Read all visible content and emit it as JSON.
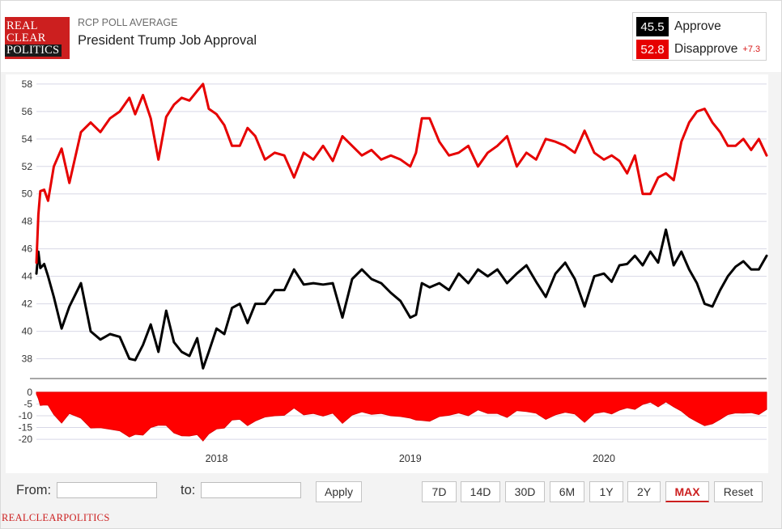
{
  "header": {
    "logo": {
      "line1": "REAL",
      "line2": "CLEAR",
      "line3": "POLITICS"
    },
    "kicker": "RCP POLL AVERAGE",
    "title": "President Trump Job Approval"
  },
  "legend": {
    "approve": {
      "value": "45.5",
      "label": "Approve",
      "color": "#000000"
    },
    "disapprove": {
      "value": "52.8",
      "label": "Disapprove",
      "spread": "+7.3",
      "color": "#e60000"
    }
  },
  "controls": {
    "from_label": "From:",
    "to_label": "to:",
    "from_value": "",
    "to_value": "",
    "apply_label": "Apply",
    "ranges": [
      "7D",
      "14D",
      "30D",
      "6M",
      "1Y",
      "2Y",
      "MAX"
    ],
    "active_range": "MAX",
    "reset_label": "Reset"
  },
  "footer": {
    "text": "REALCLEARPOLITICS"
  },
  "chart_data": {
    "type": "line",
    "x_unit": "year",
    "xlim": [
      2017.07,
      2020.84
    ],
    "x_ticks": [
      2018,
      2019,
      2020
    ],
    "x_tick_labels": [
      "2018",
      "2019",
      "2020"
    ],
    "main": {
      "ylim": [
        36.5,
        58.7
      ],
      "y_ticks": [
        38,
        40,
        42,
        44,
        46,
        48,
        50,
        52,
        54,
        56,
        58
      ],
      "y_tick_labels": [
        "38",
        "40",
        "42",
        "44",
        "46",
        "48",
        "50",
        "52",
        "54",
        "56",
        "58"
      ],
      "grid": true
    },
    "spread_panel": {
      "type": "area",
      "ylim": [
        -21,
        1
      ],
      "y_ticks": [
        0,
        -5,
        -10,
        -15,
        -20
      ],
      "y_tick_labels": [
        "0",
        "-5",
        "-10",
        "-15",
        "-20"
      ]
    },
    "x": [
      2017.07,
      2017.08,
      2017.09,
      2017.11,
      2017.13,
      2017.16,
      2017.2,
      2017.24,
      2017.3,
      2017.35,
      2017.4,
      2017.45,
      2017.5,
      2017.55,
      2017.58,
      2017.62,
      2017.66,
      2017.7,
      2017.74,
      2017.78,
      2017.82,
      2017.86,
      2017.9,
      2017.93,
      2017.96,
      2018.0,
      2018.04,
      2018.08,
      2018.12,
      2018.16,
      2018.2,
      2018.25,
      2018.3,
      2018.35,
      2018.4,
      2018.45,
      2018.5,
      2018.55,
      2018.6,
      2018.65,
      2018.7,
      2018.75,
      2018.8,
      2018.85,
      2018.9,
      2018.95,
      2019.0,
      2019.03,
      2019.06,
      2019.1,
      2019.15,
      2019.2,
      2019.25,
      2019.3,
      2019.35,
      2019.4,
      2019.45,
      2019.5,
      2019.55,
      2019.6,
      2019.65,
      2019.7,
      2019.75,
      2019.8,
      2019.85,
      2019.9,
      2019.95,
      2020.0,
      2020.04,
      2020.08,
      2020.12,
      2020.16,
      2020.2,
      2020.24,
      2020.28,
      2020.32,
      2020.36,
      2020.4,
      2020.44,
      2020.48,
      2020.52,
      2020.56,
      2020.6,
      2020.64,
      2020.68,
      2020.72,
      2020.76,
      2020.8,
      2020.84
    ],
    "series": [
      {
        "name": "Approve",
        "color": "#000000",
        "values": [
          44.2,
          45.8,
          44.6,
          44.9,
          44.0,
          42.5,
          40.2,
          41.8,
          43.5,
          40.0,
          39.4,
          39.8,
          39.6,
          38.0,
          37.9,
          39.0,
          40.5,
          38.5,
          41.5,
          39.2,
          38.5,
          38.2,
          39.5,
          37.3,
          38.5,
          40.2,
          39.8,
          41.7,
          42.0,
          40.6,
          42.0,
          42.0,
          43.0,
          43.0,
          44.5,
          43.4,
          43.5,
          43.4,
          43.5,
          41.0,
          43.8,
          44.5,
          43.8,
          43.5,
          42.8,
          42.2,
          41.0,
          41.2,
          43.5,
          43.2,
          43.5,
          43.0,
          44.2,
          43.5,
          44.5,
          44.0,
          44.5,
          43.5,
          44.2,
          44.8,
          43.6,
          42.5,
          44.2,
          45.0,
          43.8,
          41.8,
          44.0,
          44.2,
          43.6,
          44.8,
          44.9,
          45.5,
          44.8,
          45.8,
          45.0,
          47.4,
          44.8,
          45.8,
          44.5,
          43.5,
          42.0,
          41.8,
          43.0,
          44.0,
          44.7,
          45.1,
          44.5,
          44.5,
          45.5
        ]
      },
      {
        "name": "Disapprove",
        "color": "#e60000",
        "values": [
          45.0,
          48.5,
          50.2,
          50.3,
          49.5,
          52.0,
          53.3,
          50.8,
          54.5,
          55.2,
          54.5,
          55.5,
          56.0,
          57.0,
          55.8,
          57.2,
          55.5,
          52.5,
          55.6,
          56.5,
          57.0,
          56.8,
          57.5,
          58.0,
          56.2,
          55.8,
          55.0,
          53.5,
          53.5,
          54.8,
          54.2,
          52.5,
          53.0,
          52.8,
          51.2,
          53.0,
          52.5,
          53.5,
          52.4,
          54.2,
          53.5,
          52.8,
          53.2,
          52.5,
          52.8,
          52.5,
          52.0,
          53.0,
          55.5,
          55.5,
          53.8,
          52.8,
          53.0,
          53.5,
          52.0,
          53.0,
          53.5,
          54.2,
          52.0,
          53.0,
          52.5,
          54.0,
          53.8,
          53.5,
          53.0,
          54.6,
          53.0,
          52.5,
          52.8,
          52.4,
          51.5,
          52.8,
          50.0,
          50.0,
          51.2,
          51.5,
          51.0,
          53.8,
          55.2,
          56.0,
          56.2,
          55.2,
          54.5,
          53.5,
          53.5,
          54.0,
          53.2,
          54.0,
          52.8
        ]
      }
    ]
  }
}
